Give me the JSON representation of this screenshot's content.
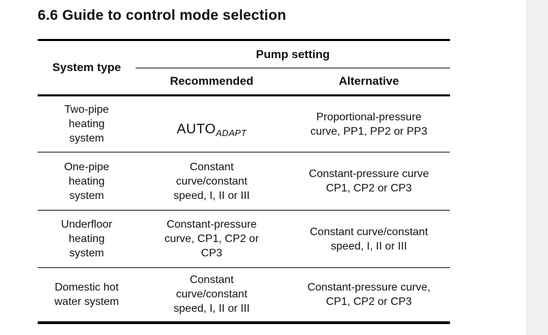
{
  "page": {
    "heading": "6.6 Guide to control mode selection"
  },
  "table": {
    "header": {
      "system_type": "System type",
      "pump_setting": "Pump setting",
      "recommended": "Recommended",
      "alternative": "Alternative"
    },
    "rows": [
      {
        "system": "Two-pipe\nheating\nsystem",
        "recommended_main": "AUTO",
        "recommended_sub": "ADAPT",
        "alternative": "Proportional-pressure\ncurve, PP1, PP2 or PP3"
      },
      {
        "system": "One-pipe\nheating\nsystem",
        "recommended": "Constant\ncurve/constant\nspeed, I, II or III",
        "alternative": "Constant-pressure curve\nCP1, CP2 or CP3"
      },
      {
        "system": "Underfloor\nheating\nsystem",
        "recommended": "Constant-pressure\ncurve, CP1, CP2 or\nCP3",
        "alternative": "Constant curve/constant\nspeed, I, II or III"
      },
      {
        "system": "Domestic hot\nwater system",
        "recommended": "Constant\ncurve/constant\nspeed, I, II or III",
        "alternative": "Constant-pressure curve,\nCP1, CP2 or CP3"
      }
    ]
  },
  "colors": {
    "text": "#111111",
    "rule": "#000000",
    "scrollbar_track": "#eff0f2"
  }
}
